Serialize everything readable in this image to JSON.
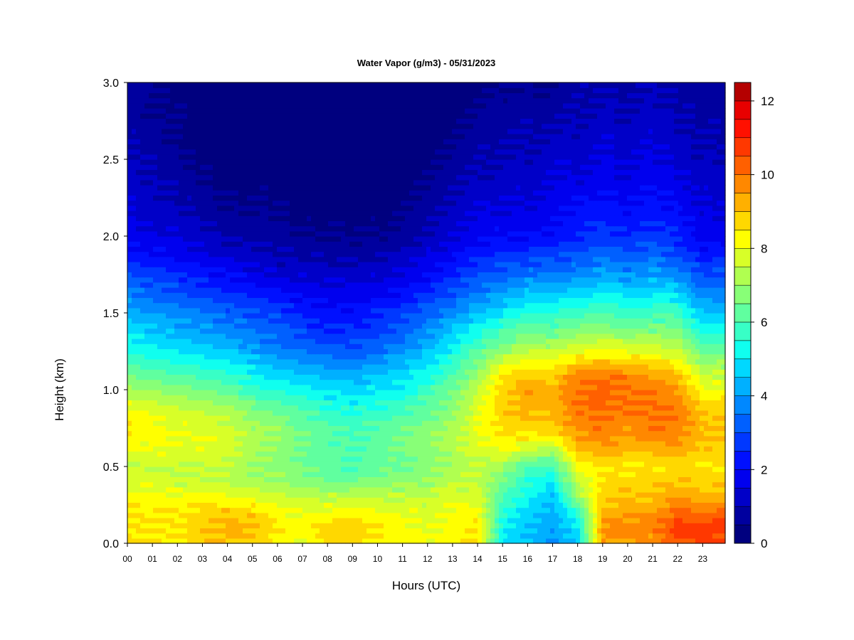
{
  "chart_data": {
    "type": "heatmap",
    "title": "Water Vapor (g/m3) - 05/31/2023",
    "xlabel": "Hours (UTC)",
    "ylabel": "Height (km)",
    "x_tick_labels": [
      "00",
      "01",
      "02",
      "03",
      "04",
      "05",
      "06",
      "07",
      "08",
      "09",
      "10",
      "11",
      "12",
      "13",
      "14",
      "15",
      "16",
      "17",
      "18",
      "19",
      "20",
      "21",
      "22",
      "23"
    ],
    "y_tick_labels": [
      "0.0",
      "0.5",
      "1.0",
      "1.5",
      "2.0",
      "2.5",
      "3.0"
    ],
    "xlim": [
      0,
      23.9
    ],
    "ylim": [
      0,
      3.0
    ],
    "colorbar": {
      "tick_labels": [
        "0",
        "2",
        "4",
        "6",
        "8",
        "10",
        "12"
      ],
      "min": 0,
      "max": 12.5,
      "levels": [
        0,
        0.5,
        1,
        1.5,
        2,
        2.5,
        3,
        3.5,
        4,
        4.5,
        5,
        5.5,
        6,
        6.5,
        7,
        7.5,
        8,
        8.5,
        9,
        9.5,
        10,
        10.5,
        11,
        11.5,
        12,
        12.5
      ],
      "colors": [
        "#00007f",
        "#00009f",
        "#0000c8",
        "#0000ee",
        "#0010ff",
        "#0038ff",
        "#0060ff",
        "#0088ff",
        "#00b0ff",
        "#00d8ff",
        "#10ffef",
        "#38ffc6",
        "#60ff9f",
        "#88ff77",
        "#b0ff50",
        "#d8ff28",
        "#ffff00",
        "#ffd800",
        "#ffb000",
        "#ff8800",
        "#ff6000",
        "#ff3800",
        "#ff1000",
        "#e80000",
        "#b40000",
        "#7f0000"
      ]
    },
    "heights_km": [
      0.0,
      0.1,
      0.2,
      0.3,
      0.4,
      0.5,
      0.6,
      0.7,
      0.8,
      0.9,
      1.0,
      1.1,
      1.2,
      1.3,
      1.4,
      1.5,
      1.6,
      1.7,
      1.8,
      1.9,
      2.0,
      2.2,
      2.4,
      2.6,
      2.8,
      3.0
    ],
    "hours_utc": [
      0,
      1,
      2,
      3,
      4,
      5,
      6,
      7,
      8,
      9,
      10,
      11,
      12,
      13,
      14,
      15,
      16,
      17,
      18,
      19,
      20,
      21,
      22,
      23
    ],
    "values": [
      [
        8.5,
        8.5,
        8.5,
        8.8,
        9.0,
        8.8,
        8.2,
        8.0,
        8.5,
        8.8,
        8.5,
        8.2,
        8.2,
        8.2,
        8.5,
        5.0,
        4.5,
        4.0,
        4.5,
        9.5,
        9.5,
        9.5,
        10.5,
        10.5
      ],
      [
        8.5,
        8.5,
        8.5,
        9.0,
        9.2,
        9.2,
        8.5,
        8.2,
        8.8,
        8.8,
        8.5,
        8.2,
        8.0,
        8.2,
        8.5,
        5.2,
        4.5,
        4.0,
        5.0,
        9.5,
        9.8,
        9.8,
        10.8,
        10.8
      ],
      [
        8.5,
        8.5,
        8.5,
        8.8,
        9.0,
        8.8,
        8.2,
        8.0,
        8.2,
        8.2,
        8.2,
        8.0,
        7.8,
        8.2,
        8.2,
        5.5,
        4.8,
        4.2,
        5.5,
        9.2,
        9.5,
        9.5,
        10.2,
        10.2
      ],
      [
        8.2,
        8.2,
        8.2,
        8.2,
        8.2,
        8.0,
        7.8,
        7.5,
        7.5,
        7.5,
        7.5,
        7.5,
        7.5,
        7.8,
        7.8,
        6.0,
        5.2,
        4.5,
        7.0,
        8.8,
        9.0,
        9.0,
        9.5,
        9.2
      ],
      [
        7.8,
        7.8,
        7.5,
        7.5,
        7.5,
        7.2,
        7.0,
        6.8,
        6.5,
        6.5,
        6.8,
        6.8,
        7.0,
        7.5,
        7.5,
        6.5,
        5.5,
        5.0,
        7.5,
        8.5,
        8.8,
        8.8,
        9.0,
        8.8
      ],
      [
        7.5,
        7.5,
        7.5,
        7.5,
        7.5,
        7.0,
        6.8,
        6.5,
        6.2,
        6.0,
        6.2,
        6.5,
        6.8,
        7.2,
        7.5,
        7.0,
        6.0,
        5.8,
        8.0,
        8.5,
        8.5,
        8.5,
        8.8,
        8.5
      ],
      [
        8.0,
        8.0,
        7.8,
        7.8,
        7.8,
        7.2,
        7.0,
        6.5,
        6.2,
        6.0,
        6.2,
        6.5,
        6.8,
        7.2,
        7.8,
        8.0,
        7.5,
        7.0,
        9.0,
        9.2,
        9.0,
        9.2,
        9.2,
        8.8
      ],
      [
        8.5,
        8.2,
        8.0,
        8.0,
        7.8,
        7.2,
        7.0,
        6.5,
        6.2,
        6.0,
        6.2,
        6.5,
        6.8,
        7.2,
        8.0,
        8.5,
        8.5,
        8.5,
        9.5,
        9.8,
        9.5,
        9.8,
        9.8,
        9.0
      ],
      [
        8.5,
        8.2,
        7.8,
        7.8,
        7.5,
        7.0,
        6.8,
        6.2,
        6.0,
        5.8,
        6.0,
        6.2,
        6.5,
        7.0,
        8.0,
        8.8,
        9.0,
        9.0,
        9.8,
        10.0,
        9.8,
        10.0,
        10.0,
        9.0
      ],
      [
        8.0,
        7.8,
        7.5,
        7.2,
        7.0,
        6.5,
        6.2,
        5.8,
        5.5,
        5.2,
        5.5,
        5.8,
        6.2,
        6.8,
        7.8,
        8.8,
        9.2,
        9.2,
        10.0,
        10.2,
        10.0,
        10.0,
        9.8,
        8.8
      ],
      [
        7.2,
        7.0,
        6.8,
        6.5,
        6.2,
        5.8,
        5.5,
        5.2,
        4.8,
        4.8,
        5.0,
        5.2,
        5.8,
        6.5,
        7.5,
        8.8,
        9.5,
        9.2,
        10.0,
        10.2,
        10.0,
        10.0,
        9.5,
        8.2
      ],
      [
        6.5,
        6.2,
        6.0,
        5.8,
        5.5,
        5.2,
        4.8,
        4.5,
        4.2,
        4.2,
        4.5,
        4.8,
        5.2,
        6.0,
        7.0,
        8.5,
        9.0,
        8.8,
        9.8,
        10.0,
        9.8,
        9.5,
        9.0,
        7.5
      ],
      [
        5.8,
        5.5,
        5.2,
        5.0,
        4.8,
        4.5,
        4.2,
        3.8,
        3.5,
        3.5,
        3.8,
        4.2,
        4.8,
        5.5,
        6.5,
        7.5,
        8.0,
        8.0,
        8.5,
        8.8,
        8.5,
        8.5,
        8.0,
        6.8
      ],
      [
        5.2,
        5.0,
        4.8,
        4.5,
        4.2,
        3.8,
        3.5,
        3.2,
        3.0,
        3.0,
        3.2,
        3.5,
        4.2,
        5.0,
        5.8,
        6.5,
        7.0,
        7.0,
        7.5,
        7.8,
        7.5,
        7.5,
        7.2,
        6.0
      ],
      [
        4.8,
        4.5,
        4.2,
        4.0,
        3.8,
        3.5,
        3.2,
        2.8,
        2.5,
        2.5,
        2.8,
        3.2,
        3.8,
        4.5,
        5.2,
        5.8,
        6.2,
        6.2,
        6.5,
        6.8,
        6.5,
        6.5,
        6.5,
        5.2
      ],
      [
        4.2,
        4.0,
        3.8,
        3.5,
        3.2,
        3.0,
        2.8,
        2.5,
        2.2,
        2.2,
        2.5,
        2.8,
        3.2,
        3.8,
        4.5,
        5.0,
        5.5,
        5.5,
        5.8,
        6.0,
        5.8,
        5.8,
        5.8,
        4.5
      ],
      [
        3.8,
        3.5,
        3.2,
        3.0,
        2.8,
        2.5,
        2.2,
        2.0,
        1.8,
        1.8,
        2.0,
        2.2,
        2.8,
        3.2,
        3.8,
        4.2,
        4.8,
        4.8,
        5.0,
        5.2,
        5.0,
        5.2,
        5.0,
        3.8
      ],
      [
        3.2,
        3.0,
        2.8,
        2.5,
        2.2,
        2.0,
        1.8,
        1.5,
        1.5,
        1.5,
        1.5,
        1.8,
        2.2,
        2.8,
        3.2,
        3.5,
        4.0,
        4.0,
        4.2,
        4.5,
        4.2,
        4.5,
        4.2,
        3.2
      ],
      [
        2.8,
        2.5,
        2.2,
        2.0,
        1.8,
        1.5,
        1.2,
        1.2,
        1.0,
        1.0,
        1.2,
        1.5,
        1.8,
        2.2,
        2.8,
        3.0,
        3.2,
        3.2,
        3.5,
        3.8,
        3.5,
        3.8,
        3.5,
        2.8
      ],
      [
        2.2,
        2.0,
        1.8,
        1.5,
        1.2,
        1.2,
        1.0,
        0.8,
        0.8,
        0.8,
        0.8,
        1.0,
        1.5,
        1.8,
        2.2,
        2.5,
        2.5,
        2.8,
        3.0,
        3.2,
        3.0,
        3.2,
        2.8,
        2.2
      ],
      [
        1.8,
        1.5,
        1.5,
        1.2,
        1.0,
        0.8,
        0.8,
        0.5,
        0.5,
        0.5,
        0.5,
        0.8,
        1.0,
        1.5,
        1.8,
        2.0,
        2.0,
        2.2,
        2.5,
        2.8,
        2.5,
        2.8,
        2.5,
        1.8
      ],
      [
        1.5,
        1.2,
        1.0,
        0.8,
        0.5,
        0.5,
        0.5,
        0.2,
        0.2,
        0.2,
        0.2,
        0.5,
        0.8,
        1.0,
        1.5,
        1.5,
        1.5,
        1.8,
        2.0,
        2.2,
        2.0,
        2.2,
        2.0,
        1.5
      ],
      [
        1.2,
        1.0,
        0.8,
        0.5,
        0.2,
        0.2,
        0.2,
        0.2,
        0.2,
        0.2,
        0.2,
        0.2,
        0.5,
        0.8,
        1.0,
        1.2,
        1.2,
        1.5,
        1.5,
        1.8,
        1.5,
        1.8,
        1.5,
        1.2
      ],
      [
        1.0,
        0.8,
        0.5,
        0.2,
        0.2,
        0.2,
        0.2,
        0.2,
        0.2,
        0.2,
        0.2,
        0.2,
        0.2,
        0.5,
        0.8,
        1.0,
        1.0,
        1.2,
        1.2,
        1.5,
        1.2,
        1.5,
        1.2,
        1.0
      ],
      [
        0.8,
        0.5,
        0.5,
        0.2,
        0.2,
        0.2,
        0.2,
        0.2,
        0.2,
        0.2,
        0.2,
        0.2,
        0.2,
        0.2,
        0.5,
        0.8,
        0.8,
        0.8,
        1.0,
        1.2,
        1.0,
        1.2,
        1.0,
        0.8
      ],
      [
        0.8,
        0.5,
        0.2,
        0.2,
        0.2,
        0.2,
        0.2,
        0.2,
        0.2,
        0.2,
        0.2,
        0.2,
        0.2,
        0.2,
        0.2,
        0.5,
        0.5,
        0.5,
        0.8,
        1.0,
        0.8,
        1.0,
        0.8,
        0.8
      ]
    ]
  }
}
